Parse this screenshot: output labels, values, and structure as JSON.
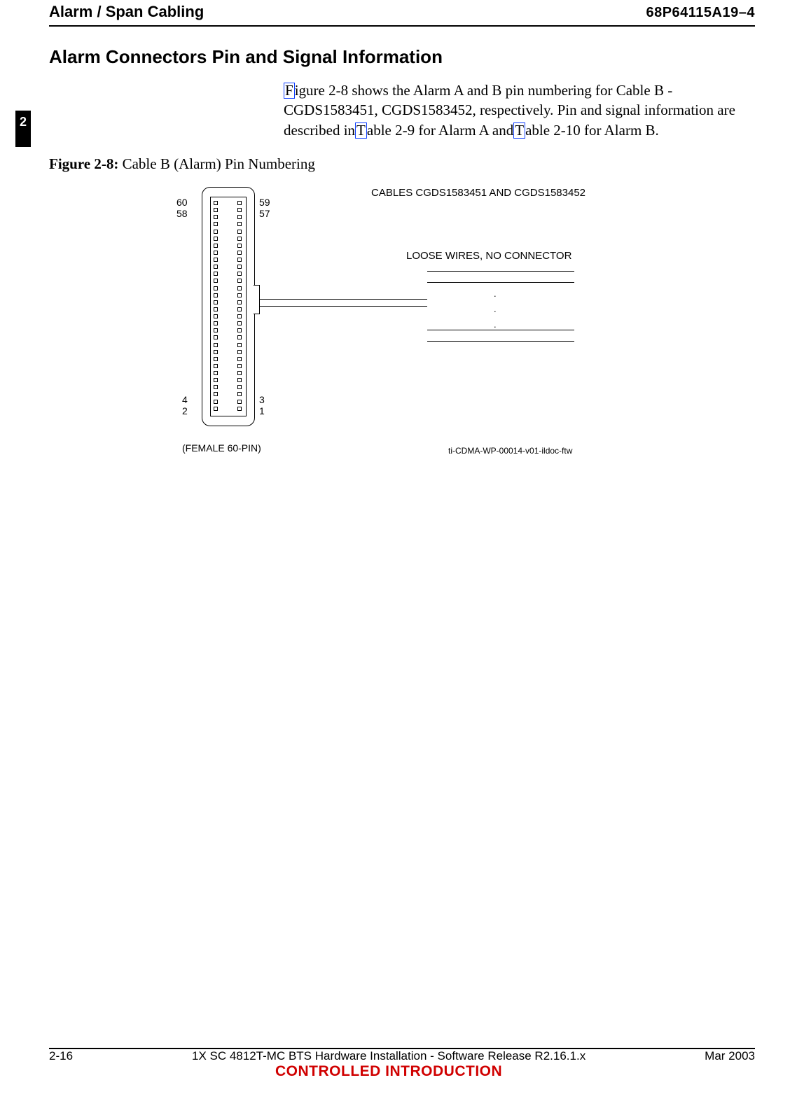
{
  "header": {
    "left": "Alarm / Span Cabling",
    "right": "68P64115A19–4"
  },
  "chapter_tab": "2",
  "section_title": "Alarm Connectors Pin and Signal Information",
  "paragraph": {
    "part1_pre": "",
    "link1_char": "F",
    "part1_post": "igure 2-8 shows the Alarm A and B pin numbering for Cable B - CGDS1583451, CGDS1583452, respectively. Pin and signal information are described in",
    "link2_text": " T",
    "part2": "able 2-9 for Alarm A and",
    "link3_text": " T",
    "part3": "able 2-10 for Alarm B."
  },
  "figure": {
    "caption_bold": "Figure 2-8:",
    "caption_rest": " Cable B (Alarm) Pin Numbering",
    "cables_label": "CABLES CGDS1583451 AND CGDS1583452",
    "loose_label": "LOOSE WIRES, NO CONNECTOR",
    "female_label": "(FEMALE 60-PIN)",
    "diagram_id": "ti-CDMA-WP-00014-v01-ildoc-ftw",
    "pins": {
      "top_left_1": "60",
      "top_left_2": "58",
      "top_right_1": "59",
      "top_right_2": "57",
      "bottom_left_1": "4",
      "bottom_left_2": "2",
      "bottom_right_1": "3",
      "bottom_right_2": "1"
    },
    "pin_rows": 30,
    "styling": {
      "line_color": "#000000",
      "link_border_color": "#1040ff",
      "controlled_color": "#d00000",
      "background_color": "#ffffff",
      "sans_font": "Arial",
      "serif_font": "Times New Roman"
    }
  },
  "footer": {
    "page_num": "2-16",
    "center_line": "1X SC 4812T-MC BTS Hardware Installation - Software Release R2.16.1.x",
    "controlled": "CONTROLLED INTRODUCTION",
    "date": "Mar 2003"
  }
}
